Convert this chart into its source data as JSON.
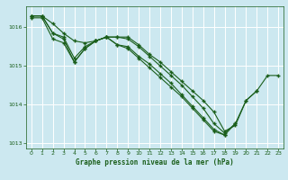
{
  "background_color": "#cce8f0",
  "grid_color": "#ffffff",
  "line_color": "#1a5e1a",
  "marker_color": "#1a5e1a",
  "xlabel": "Graphe pression niveau de la mer (hPa)",
  "xlabel_color": "#1a5e1a",
  "xlim": [
    -0.5,
    23.5
  ],
  "ylim": [
    1012.85,
    1016.55
  ],
  "yticks": [
    1013,
    1014,
    1015,
    1016
  ],
  "xticks": [
    0,
    1,
    2,
    3,
    4,
    5,
    6,
    7,
    8,
    9,
    10,
    11,
    12,
    13,
    14,
    15,
    16,
    17,
    18,
    19,
    20,
    21,
    22,
    23
  ],
  "series": [
    [
      1016.3,
      1016.3,
      1016.1,
      1015.85,
      1015.65,
      1015.6,
      1015.65,
      1015.75,
      1015.75,
      1015.75,
      1015.55,
      1015.3,
      1015.1,
      1014.85,
      1014.6,
      1014.35,
      1014.1,
      1013.8,
      1013.3,
      1013.45,
      1014.1,
      1014.35,
      1014.75,
      1014.75
    ],
    [
      1016.3,
      1016.3,
      1015.85,
      1015.75,
      1015.2,
      1015.5,
      1015.65,
      1015.75,
      1015.75,
      1015.7,
      1015.5,
      1015.25,
      1015.0,
      1014.75,
      1014.5,
      1014.2,
      1013.9,
      1013.5,
      1013.25,
      1013.5,
      1014.1,
      1014.35,
      null,
      null
    ],
    [
      1016.3,
      1016.3,
      1015.85,
      1015.7,
      1015.1,
      1015.45,
      1015.65,
      1015.75,
      1015.55,
      1015.5,
      1015.25,
      1015.05,
      1014.8,
      1014.55,
      1014.25,
      1013.95,
      1013.65,
      1013.35,
      1013.2,
      1013.5,
      null,
      null,
      null,
      null
    ],
    [
      1016.25,
      1016.25,
      1015.7,
      1015.6,
      1015.1,
      1015.45,
      1015.65,
      1015.75,
      1015.55,
      1015.45,
      1015.2,
      1014.95,
      1014.7,
      1014.45,
      1014.2,
      1013.9,
      1013.6,
      1013.3,
      1013.2,
      null,
      null,
      null,
      null,
      null
    ]
  ]
}
